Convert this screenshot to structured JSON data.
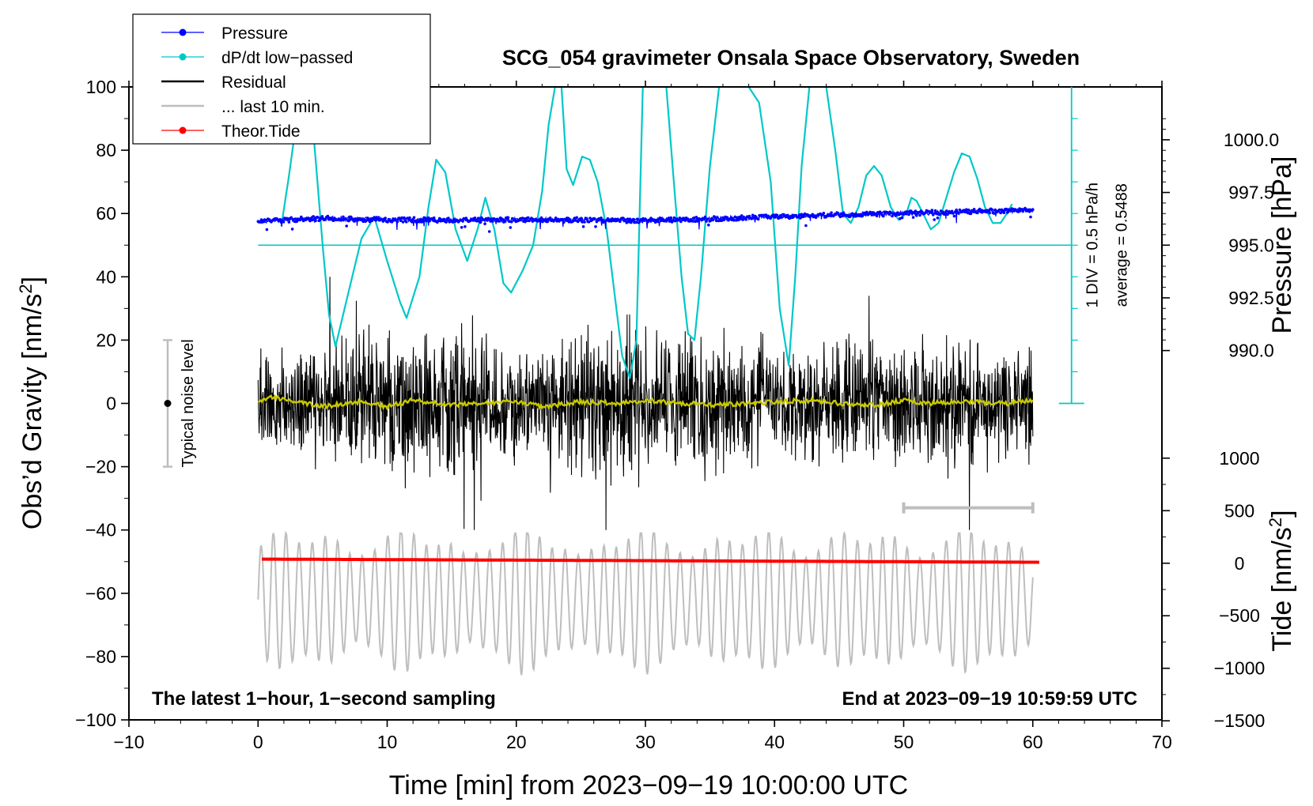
{
  "chart_data": {
    "type": "line",
    "title": "SCG_054 gravimeter Onsala Space Observatory, Sweden",
    "xlabel": "Time [min] from 2023−09−19 10:00:00 UTC",
    "ylabel_left": "Obs’d Gravity [nm/s",
    "ylabel_left_sup": "2",
    "ylabel_left_close": "]",
    "ylabel_right_pressure": "Pressure [hPa]",
    "ylabel_right_tide": "Tide [nm/s",
    "ylabel_right_tide_sup": "2",
    "ylabel_right_tide_close": "]",
    "xlim": [
      -10,
      70
    ],
    "ylim": [
      -100,
      100
    ],
    "x_ticks": [
      {
        "v": -10,
        "label": "−10"
      },
      {
        "v": 0,
        "label": "0"
      },
      {
        "v": 10,
        "label": "10"
      },
      {
        "v": 20,
        "label": "20"
      },
      {
        "v": 30,
        "label": "30"
      },
      {
        "v": 40,
        "label": "40"
      },
      {
        "v": 50,
        "label": "50"
      },
      {
        "v": 60,
        "label": "60"
      },
      {
        "v": 70,
        "label": "70"
      }
    ],
    "y_ticks": [
      {
        "v": 100,
        "label": "100"
      },
      {
        "v": 80,
        "label": "80"
      },
      {
        "v": 60,
        "label": "60"
      },
      {
        "v": 40,
        "label": "40"
      },
      {
        "v": 20,
        "label": "20"
      },
      {
        "v": 0,
        "label": "0"
      },
      {
        "v": -20,
        "label": "−20"
      },
      {
        "v": -40,
        "label": "−40"
      },
      {
        "v": -60,
        "label": "−60"
      },
      {
        "v": -80,
        "label": "−80"
      },
      {
        "v": -100,
        "label": "−100"
      }
    ],
    "pressure_axis": {
      "map": {
        "p1": 995.0,
        "y1": 50,
        "p2": 990.0,
        "y2": 16.7
      },
      "ticks": [
        {
          "v": 1000.0,
          "label": "1000.0"
        },
        {
          "v": 997.5,
          "label": "997.5"
        },
        {
          "v": 995.0,
          "label": "995.0"
        },
        {
          "v": 992.5,
          "label": "992.5"
        },
        {
          "v": 990.0,
          "label": "990.0"
        }
      ]
    },
    "tide_axis": {
      "map": {
        "t1": 0,
        "y1": -50.5,
        "t2": 1000,
        "y2": -17.3
      },
      "ticks": [
        {
          "v": 1000,
          "label": "1000"
        },
        {
          "v": 500,
          "label": "500"
        },
        {
          "v": 0,
          "label": "0"
        },
        {
          "v": -500,
          "label": "−500"
        },
        {
          "v": -1000,
          "label": "−1000"
        },
        {
          "v": -1500,
          "label": "−1500"
        }
      ]
    },
    "legend": [
      {
        "label": "Pressure",
        "color": "#0000ff",
        "marker": true
      },
      {
        "label": "dP/dt low−passed",
        "color": "#00c8c8",
        "marker": true
      },
      {
        "label": "Residual",
        "color": "#000000",
        "marker": false
      },
      {
        "label": "... last 10 min.",
        "color": "#bebebe",
        "marker": false
      },
      {
        "label": "Theor.Tide",
        "color": "#ff0000",
        "marker": true
      }
    ],
    "series": [
      {
        "name": "Pressure",
        "color": "#0000ff",
        "style": "dense-markers",
        "x": [
          0,
          5,
          10,
          15,
          20,
          25,
          30,
          35,
          40,
          45,
          50,
          55,
          60
        ],
        "values": [
          57.5,
          58.5,
          58.0,
          58.0,
          58.0,
          58.0,
          57.8,
          58.3,
          59.0,
          59.6,
          60.0,
          60.6,
          61.0
        ]
      },
      {
        "name": "dP/dt low−passed",
        "color": "#00c8c8",
        "style": "line",
        "x": [
          1.8,
          2.4,
          3.2,
          3.8,
          4.2,
          5.0,
          5.5,
          6.0,
          7.0,
          8.0,
          9.0,
          10.0,
          11.0,
          11.5,
          12.5,
          13.2,
          13.8,
          14.5,
          15.3,
          16.2,
          17.0,
          17.6,
          18.3,
          19.0,
          19.6,
          20.5,
          21.3,
          22.0,
          22.5,
          23.0,
          23.5,
          23.9,
          24.4,
          25.1,
          25.7,
          26.3,
          27.0,
          27.6,
          28.2,
          28.8,
          29.3,
          29.8,
          30.3,
          31.0,
          31.6,
          32.2,
          32.8,
          33.3,
          33.8,
          34.3,
          35.0,
          35.7,
          36.3,
          36.9,
          37.4,
          38.0,
          38.8,
          39.7,
          40.4,
          41.1,
          41.6,
          42.1,
          42.7,
          43.3,
          44.0,
          44.7,
          45.3,
          45.9,
          46.5,
          47.1,
          47.7,
          48.3,
          49.0,
          49.6,
          50.2,
          50.6,
          51.0,
          51.5,
          52.1,
          52.7,
          53.3,
          53.9,
          54.5,
          55.1,
          55.7,
          56.3,
          56.9,
          57.5,
          58.0,
          58.4
        ],
        "values": [
          56.0,
          72.0,
          96.0,
          102.0,
          90.0,
          50.0,
          28.0,
          18.0,
          35.0,
          52.0,
          59.0,
          45.0,
          32.0,
          27.0,
          40.0,
          62.0,
          77.0,
          73.0,
          55.0,
          45.0,
          55.0,
          65.0,
          55.0,
          38.0,
          35.0,
          42.0,
          50.0,
          67.0,
          88.0,
          100.0,
          100.0,
          74.0,
          69.0,
          78.0,
          77.0,
          70.0,
          55.0,
          35.0,
          15.0,
          8.0,
          20.0,
          100.0,
          103.0,
          103.0,
          101.0,
          70.0,
          40.0,
          22.0,
          20.0,
          40.0,
          75.0,
          100.0,
          108.0,
          108.0,
          103.0,
          100.0,
          95.0,
          70.0,
          30.0,
          12.0,
          40.0,
          75.0,
          100.0,
          102.0,
          100.0,
          80.0,
          60.0,
          57.0,
          62.0,
          72.0,
          75.0,
          72.0,
          62.0,
          58.0,
          60.0,
          65.0,
          64.0,
          60.0,
          55.0,
          57.0,
          65.0,
          73.0,
          79.0,
          78.0,
          71.0,
          62.0,
          57.0,
          57.0,
          60.0,
          63.0
        ]
      },
      {
        "name": "dP/dt reference",
        "color": "#00c8c8",
        "style": "hline",
        "x": [
          0,
          63
        ],
        "values": [
          50,
          50
        ]
      },
      {
        "name": "Residual",
        "color": "#000000",
        "style": "noise",
        "x": [
          0,
          5,
          10,
          15,
          20,
          25,
          30,
          35,
          40,
          45,
          50,
          55,
          60
        ],
        "values": [
          0,
          0,
          0,
          0,
          0,
          0,
          0,
          0,
          0,
          0,
          0,
          0,
          0
        ],
        "amplitude": [
          11,
          12,
          15,
          14,
          12,
          16,
          16,
          13,
          13,
          12,
          12,
          14,
          12
        ],
        "min_observed": -40,
        "max_observed": 40
      },
      {
        "name": "Residual smoothed",
        "color": "#c8c800",
        "style": "line",
        "x": [
          0,
          1,
          3,
          5,
          8,
          10,
          12,
          15,
          18,
          20,
          22,
          25,
          28,
          30,
          33,
          35,
          38,
          40,
          43,
          45,
          48,
          50,
          52,
          55,
          58,
          60
        ],
        "values": [
          0,
          2,
          0.5,
          -1,
          0.5,
          -1,
          1,
          -0.5,
          0,
          0.5,
          -1,
          0.5,
          0,
          1,
          0,
          -0.5,
          0,
          0.5,
          1,
          0,
          -0.5,
          1,
          0,
          0.5,
          0,
          1
        ]
      },
      {
        "name": "Theor.Tide",
        "color": "#ff0000",
        "style": "line",
        "x": [
          0.3,
          60.5
        ],
        "values": [
          -49.2,
          -50.2
        ]
      },
      {
        "name": "... last 10 min.",
        "color": "#bebebe",
        "style": "oscillation",
        "x_range": [
          0,
          60
        ],
        "center": -62,
        "amplitude_range": [
          -89,
          -41
        ]
      }
    ],
    "annotations": {
      "noise_label": "Typical noise level",
      "noise_bar": {
        "x": -7,
        "y_low": -20,
        "y_high": 20,
        "y_mid": 0
      },
      "scale_div": "1 DIV = 0.5 hPa/h",
      "average": "average = 0.5488",
      "scale_axis": {
        "x": 63,
        "y_low": 0,
        "y_high": 100
      },
      "last10_bar": {
        "x_start": 50,
        "x_end": 60,
        "y": -33
      },
      "bottom_left": "The latest 1−hour, 1−second sampling",
      "bottom_right": "End at 2023−09−19 10:59:59 UTC"
    }
  }
}
